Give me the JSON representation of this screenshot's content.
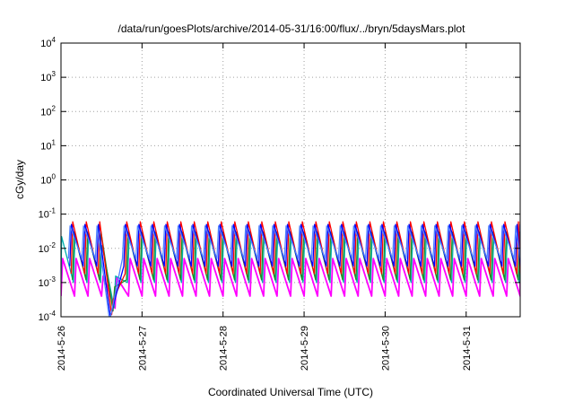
{
  "chart_data": {
    "type": "line",
    "title": "/data/run/goesPlots/archive/2014-05-31/16:00/flux/../bryn/5daysMars.plot",
    "xlabel": "Coordinated Universal Time (UTC)",
    "ylabel": "cGy/day",
    "yscale": "log",
    "ylim": [
      0.0001,
      10000
    ],
    "xlim": [
      "2014-05-26T00:00",
      "2014-05-31T16:00"
    ],
    "yticks": [
      {
        "value": 0.0001,
        "base": "10",
        "exp": "-4"
      },
      {
        "value": 0.001,
        "base": "10",
        "exp": "-3"
      },
      {
        "value": 0.01,
        "base": "10",
        "exp": "-2"
      },
      {
        "value": 0.1,
        "base": "10",
        "exp": "-1"
      },
      {
        "value": 1,
        "base": "10",
        "exp": "0"
      },
      {
        "value": 10,
        "base": "10",
        "exp": "1"
      },
      {
        "value": 100,
        "base": "10",
        "exp": "2"
      },
      {
        "value": 1000,
        "base": "10",
        "exp": "3"
      },
      {
        "value": 10000,
        "base": "10",
        "exp": "4"
      }
    ],
    "xticks": [
      "2014-5-26",
      "2014-5-27",
      "2014-5-28",
      "2014-5-29",
      "2014-5-30",
      "2014-5-31"
    ],
    "grid": true,
    "legend": "none",
    "sawtooth_period_hours": 4,
    "series": [
      {
        "color": "#ff00ff",
        "peak": 0.005,
        "trough": 0.0004,
        "phase_hours": 0.0
      },
      {
        "color": "#00b0b0",
        "peak": 0.022,
        "trough": 0.001,
        "phase_hours": 0.3
      },
      {
        "color": "#228b22",
        "peak": 0.03,
        "trough": 0.0012,
        "phase_hours": 0.6
      },
      {
        "color": "#ff0000",
        "peak": 0.06,
        "trough": 0.0018,
        "phase_hours": 1.0
      },
      {
        "color": "#0000ff",
        "peak": 0.05,
        "trough": 0.003,
        "phase_hours": 1.4
      },
      {
        "color": "#4f81ff",
        "peak": 0.045,
        "trough": 0.005,
        "phase_hours": 1.8
      }
    ],
    "dropout": {
      "start": "2014-05-26T12:00",
      "end": "2014-05-26T17:00",
      "min": 0.0001
    }
  }
}
